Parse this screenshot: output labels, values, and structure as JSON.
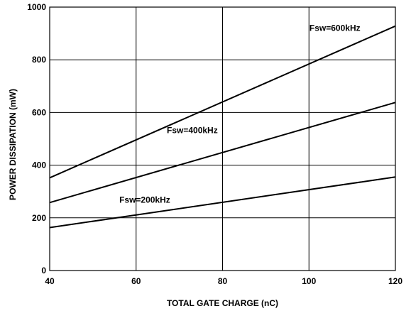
{
  "chart_data": {
    "type": "line",
    "title": "",
    "xlabel": "TOTAL GATE CHARGE (nC)",
    "ylabel": "POWER DISSIPATION (mW)",
    "xlim": [
      40,
      120
    ],
    "ylim": [
      0,
      1000
    ],
    "xticks": [
      40,
      60,
      80,
      100,
      120
    ],
    "yticks": [
      0,
      200,
      400,
      600,
      800,
      1000
    ],
    "grid": true,
    "legend": "none",
    "series": [
      {
        "name": "Fsw=600kHz",
        "x": [
          40,
          120
        ],
        "y": [
          352,
          928
        ],
        "label_at": [
          106,
          920
        ]
      },
      {
        "name": "Fsw=400kHz",
        "x": [
          40,
          120
        ],
        "y": [
          258,
          638
        ],
        "label_at": [
          73,
          533
        ]
      },
      {
        "name": "Fsw=200kHz",
        "x": [
          40,
          120
        ],
        "y": [
          163,
          355
        ],
        "label_at": [
          62,
          268
        ]
      }
    ],
    "line_color": "#000000"
  }
}
